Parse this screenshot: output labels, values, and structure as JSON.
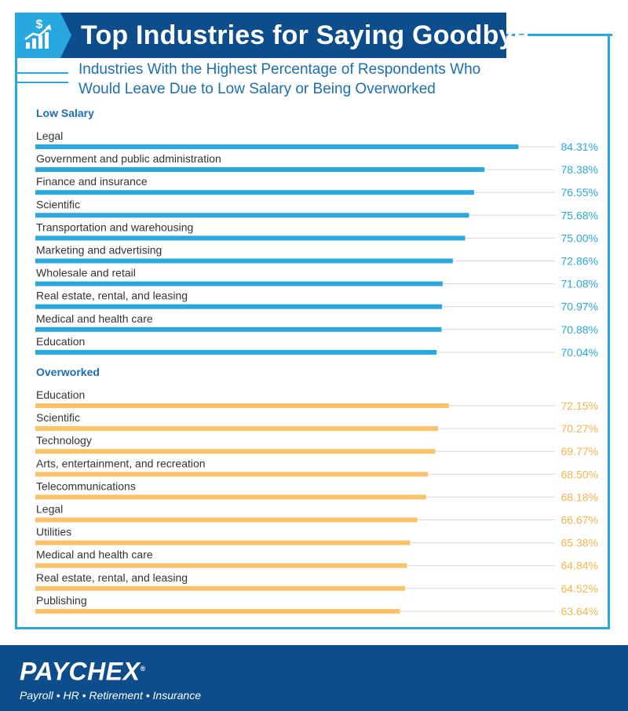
{
  "title": "Top Industries for Saying Goodbye",
  "subtitle": "Industries With the Highest Percentage of Respondents Who\nWould Leave Due to Low Salary or Being Overworked",
  "colors": {
    "navy": "#0d4d8c",
    "blue": "#29a8e0",
    "orange": "#fcc26a"
  },
  "icons": {
    "title": "dollar-growth-chart-icon"
  },
  "chart_data": [
    {
      "type": "bar",
      "title": "Low Salary",
      "categories": [
        "Legal",
        "Government and public administration",
        "Finance and insurance",
        "Scientific",
        "Transportation and warehousing",
        "Marketing and advertising",
        "Wholesale and retail",
        "Real estate, rental, and leasing",
        "Medical and health care",
        "Education"
      ],
      "values": [
        84.31,
        78.38,
        76.55,
        75.68,
        75.0,
        72.86,
        71.08,
        70.97,
        70.88,
        70.04
      ],
      "labels": [
        "84.31%",
        "78.38%",
        "76.55%",
        "75.68%",
        "75.00%",
        "72.86%",
        "71.08%",
        "70.97%",
        "70.88%",
        "70.04%"
      ],
      "color": "#29a8e0",
      "label_color": "#29a8e0",
      "xlim": [
        0,
        100
      ],
      "grid": true
    },
    {
      "type": "bar",
      "title": "Overworked",
      "categories": [
        "Education",
        "Scientific",
        "Technology",
        "Arts, entertainment, and recreation",
        "Telecommunications",
        "Legal",
        "Utilities",
        "Medical and health care",
        "Real estate, rental, and leasing",
        "Publishing"
      ],
      "values": [
        72.15,
        70.27,
        69.77,
        68.5,
        68.18,
        66.67,
        65.38,
        64.84,
        64.52,
        63.64
      ],
      "labels": [
        "72.15%",
        "70.27%",
        "69.77%",
        "68.50%",
        "68.18%",
        "66.67%",
        "65.38%",
        "64.84%",
        "64.52%",
        "63.64%"
      ],
      "color": "#fcc26a",
      "label_color": "#f8b44a",
      "xlim": [
        0,
        100
      ],
      "grid": true
    }
  ],
  "footer": {
    "brand": "PAYCHEX",
    "brand_mark": "®",
    "tagline": "Payroll • HR • Retirement • Insurance"
  }
}
